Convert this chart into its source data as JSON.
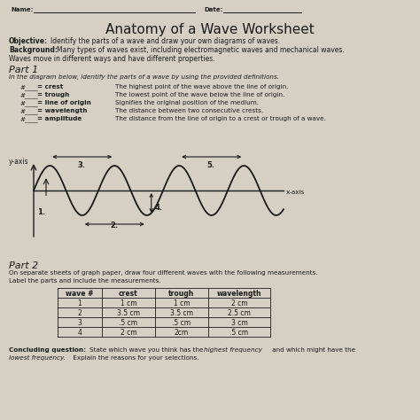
{
  "title": "Anatomy of a Wave Worksheet",
  "bg_color": "#d6d0c4",
  "text_color": "#1a1a1a",
  "definitions": [
    [
      "crest",
      "The highest point of the wave above the line of origin."
    ],
    [
      "trough",
      "The lowest point of the wave below the line of origin."
    ],
    [
      "line of origin",
      "Signifies the original position of the medium."
    ],
    [
      "wavelength",
      "The distance between two consecutive crests."
    ],
    [
      "amplitude",
      "The distance from the line of origin to a crest or trough of a wave."
    ]
  ],
  "table_headers": [
    "wave #",
    "crest",
    "trough",
    "wavelength"
  ],
  "table_data": [
    [
      "1",
      "1 cm",
      "1 cm",
      "2 cm"
    ],
    [
      "2",
      "3.5 cm",
      "3.5 cm",
      "2.5 cm"
    ],
    [
      "3",
      ".5 cm",
      ".5 cm",
      "3 cm"
    ],
    [
      "4",
      "2 cm",
      "2cm",
      ".5 cm"
    ]
  ]
}
